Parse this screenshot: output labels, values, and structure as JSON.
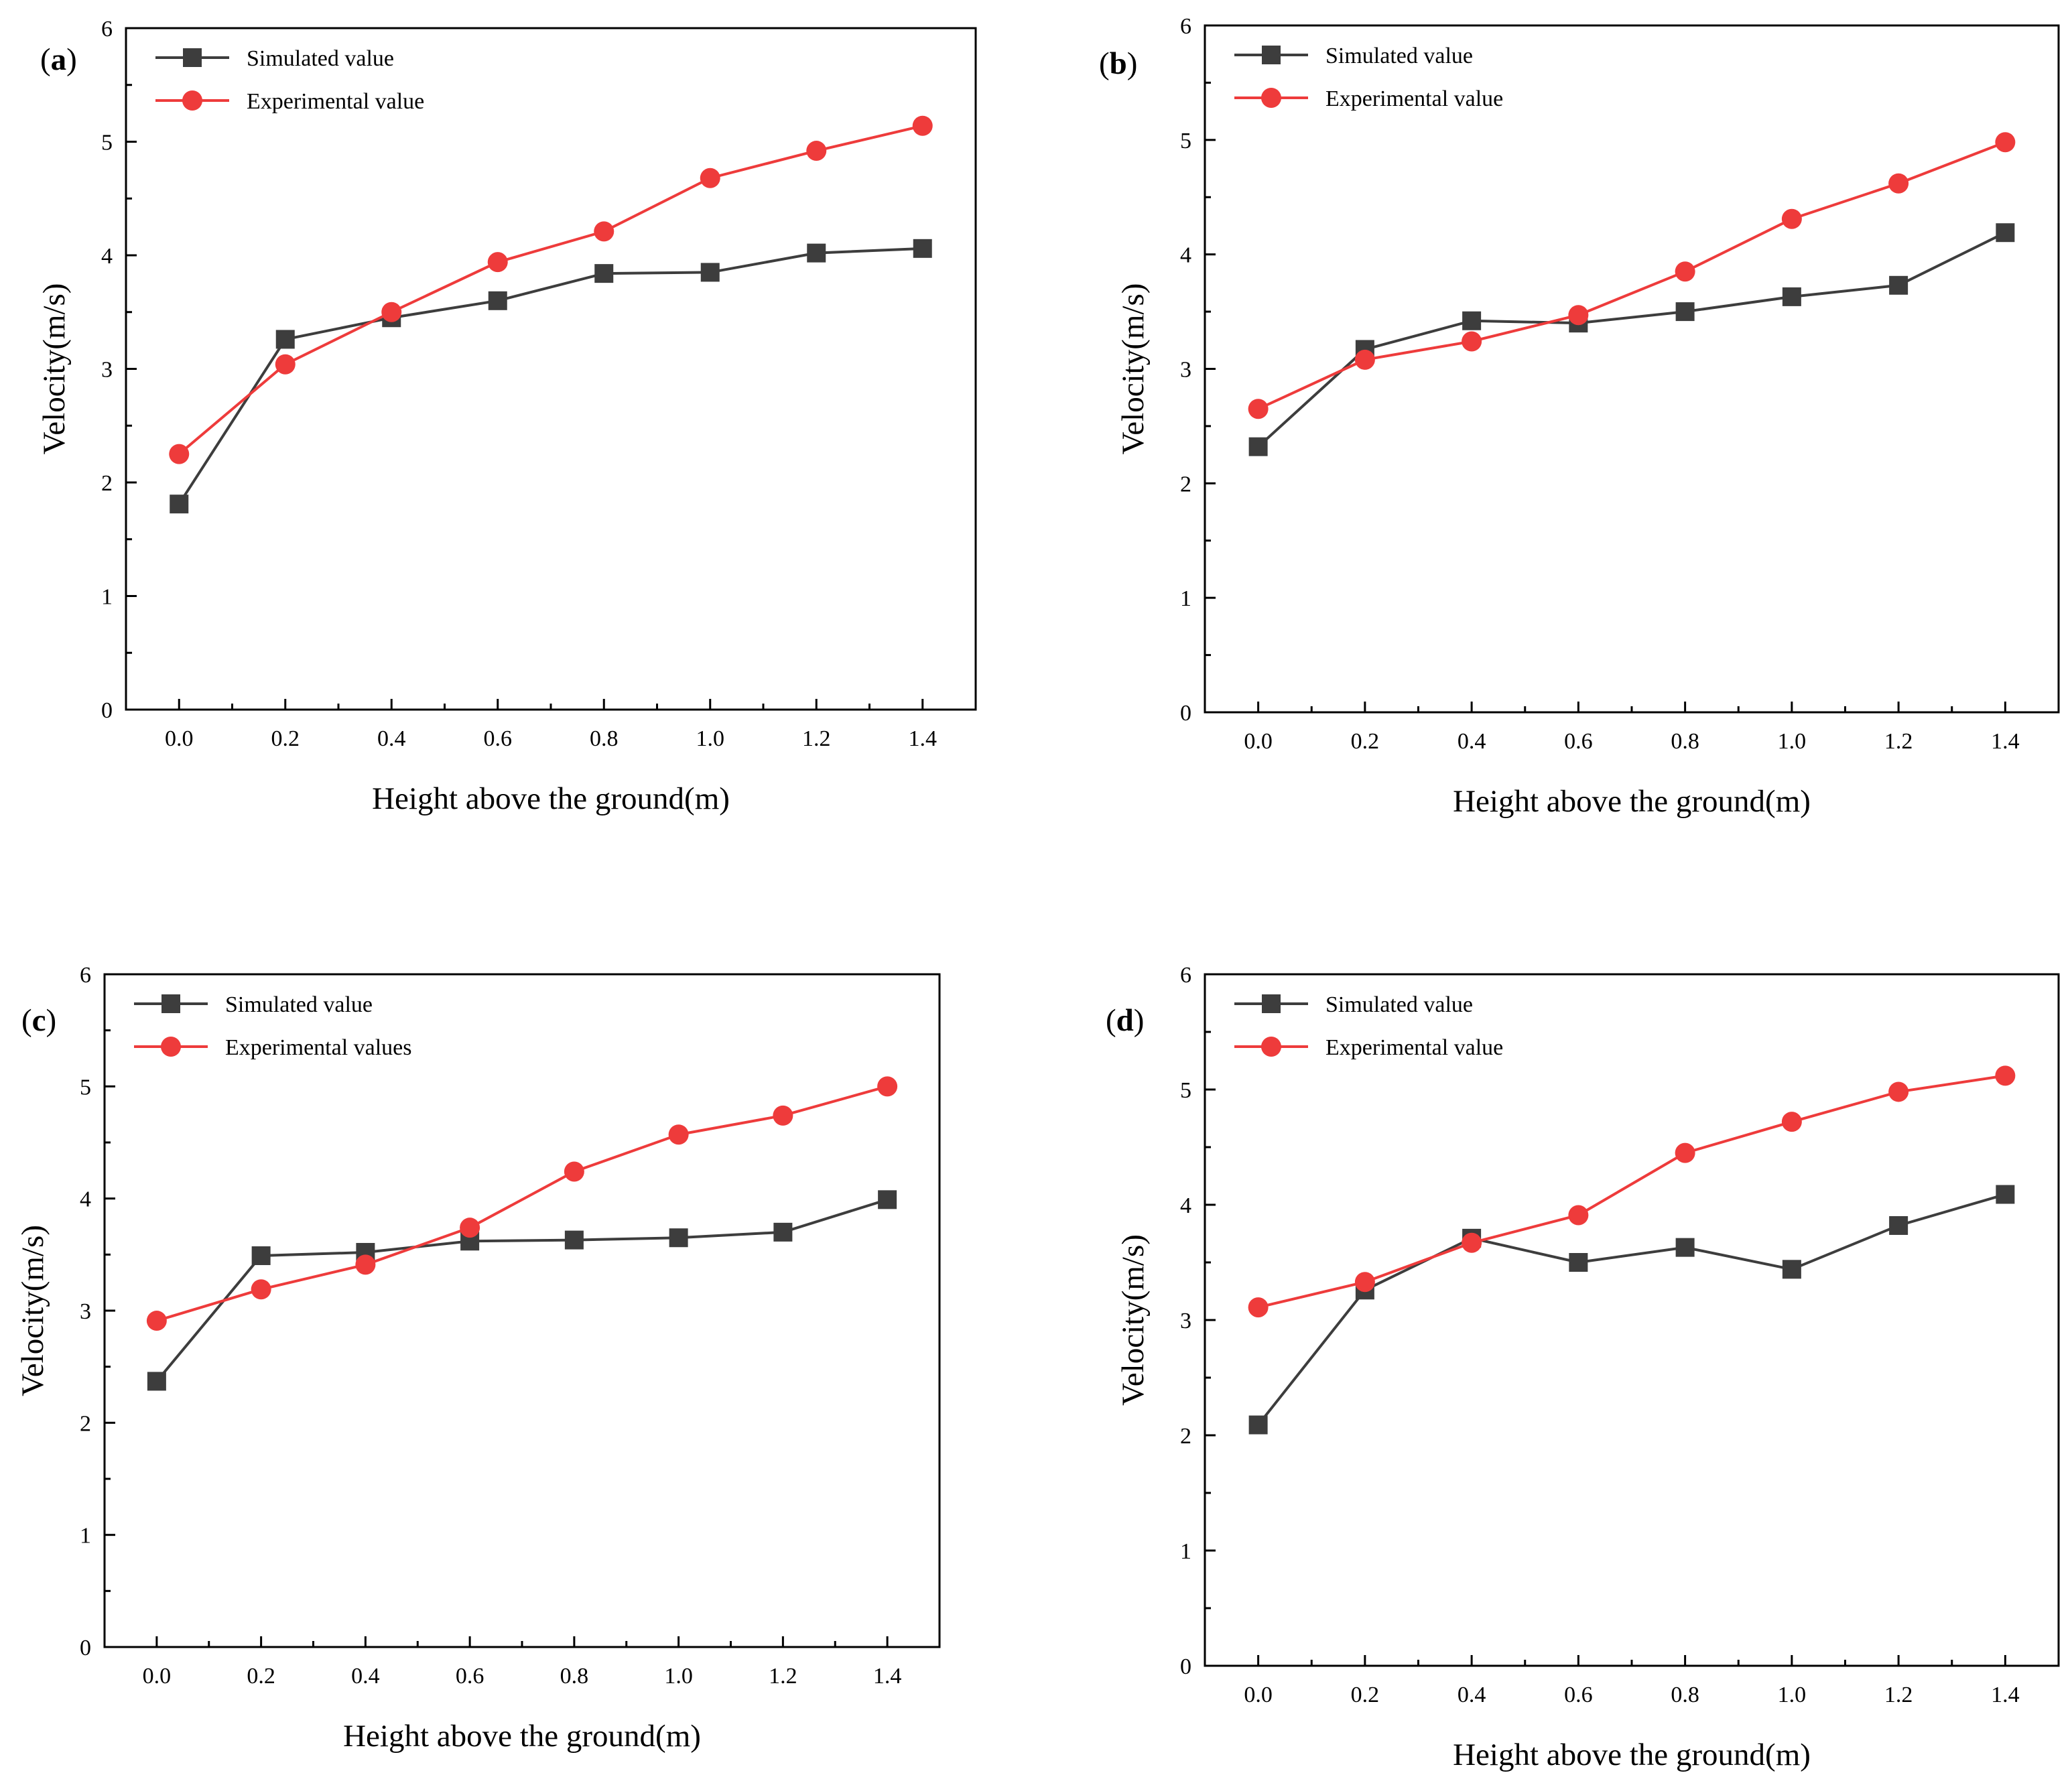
{
  "colors": {
    "simulated": "#3d3d3d",
    "experimental": "#ee3b3b"
  },
  "chart_data": [
    {
      "type": "line",
      "panel_label": "a",
      "xlabel": "Height above the ground(m)",
      "ylabel": "Velocity(m/s)",
      "x": [
        0.0,
        0.2,
        0.4,
        0.6,
        0.8,
        1.0,
        1.2,
        1.4
      ],
      "x_tick_labels": [
        "0.0",
        "0.2",
        "0.4",
        "0.6",
        "0.8",
        "1.0",
        "1.2",
        "1.4"
      ],
      "y_tick_labels": [
        "0",
        "1",
        "2",
        "3",
        "4",
        "5",
        "6"
      ],
      "xlim": [
        -0.1,
        1.5
      ],
      "ylim": [
        0,
        6
      ],
      "legend_position": "top-left",
      "series": [
        {
          "name": "Simulated value",
          "marker": "square",
          "values": [
            1.81,
            3.26,
            3.45,
            3.6,
            3.84,
            3.85,
            4.02,
            4.06
          ]
        },
        {
          "name": "Experimental value",
          "marker": "circle",
          "values": [
            2.25,
            3.04,
            3.5,
            3.94,
            4.21,
            4.68,
            4.92,
            5.14
          ]
        }
      ]
    },
    {
      "type": "line",
      "panel_label": "b",
      "xlabel": "Height above the ground(m)",
      "ylabel": "Velocity(m/s)",
      "x": [
        0.0,
        0.2,
        0.4,
        0.6,
        0.8,
        1.0,
        1.2,
        1.4
      ],
      "x_tick_labels": [
        "0.0",
        "0.2",
        "0.4",
        "0.6",
        "0.8",
        "1.0",
        "1.2",
        "1.4"
      ],
      "y_tick_labels": [
        "0",
        "1",
        "2",
        "3",
        "4",
        "5",
        "6"
      ],
      "xlim": [
        -0.1,
        1.5
      ],
      "ylim": [
        0,
        6
      ],
      "legend_position": "top-left",
      "series": [
        {
          "name": "Simulated value",
          "marker": "square",
          "values": [
            2.32,
            3.17,
            3.42,
            3.4,
            3.5,
            3.63,
            3.73,
            4.19
          ]
        },
        {
          "name": "Experimental value",
          "marker": "circle",
          "values": [
            2.65,
            3.08,
            3.24,
            3.47,
            3.85,
            4.31,
            4.62,
            4.98
          ]
        }
      ]
    },
    {
      "type": "line",
      "panel_label": "c",
      "xlabel": "Height above the ground(m)",
      "ylabel": "Velocity(m/s)",
      "x": [
        0.0,
        0.2,
        0.4,
        0.6,
        0.8,
        1.0,
        1.2,
        1.4
      ],
      "x_tick_labels": [
        "0.0",
        "0.2",
        "0.4",
        "0.6",
        "0.8",
        "1.0",
        "1.2",
        "1.4"
      ],
      "y_tick_labels": [
        "0",
        "1",
        "2",
        "3",
        "4",
        "5",
        "6"
      ],
      "xlim": [
        -0.1,
        1.5
      ],
      "ylim": [
        0,
        6
      ],
      "legend_position": "top-left",
      "series": [
        {
          "name": "Simulated value",
          "marker": "square",
          "values": [
            2.37,
            3.49,
            3.52,
            3.62,
            3.63,
            3.65,
            3.7,
            3.99
          ]
        },
        {
          "name": "Experimental values",
          "marker": "circle",
          "values": [
            2.91,
            3.19,
            3.41,
            3.74,
            4.24,
            4.57,
            4.74,
            5.0
          ]
        }
      ]
    },
    {
      "type": "line",
      "panel_label": "d",
      "xlabel": "Height above the ground(m)",
      "ylabel": "Velocity(m/s)",
      "x": [
        0.0,
        0.2,
        0.4,
        0.6,
        0.8,
        1.0,
        1.2,
        1.4
      ],
      "x_tick_labels": [
        "0.0",
        "0.2",
        "0.4",
        "0.6",
        "0.8",
        "1.0",
        "1.2",
        "1.4"
      ],
      "y_tick_labels": [
        "0",
        "1",
        "2",
        "3",
        "4",
        "5",
        "6"
      ],
      "xlim": [
        -0.1,
        1.5
      ],
      "ylim": [
        0,
        6
      ],
      "legend_position": "top-left",
      "series": [
        {
          "name": "Simulated value",
          "marker": "square",
          "values": [
            2.09,
            3.26,
            3.71,
            3.5,
            3.63,
            3.44,
            3.82,
            4.09
          ]
        },
        {
          "name": "Experimental value",
          "marker": "circle",
          "values": [
            3.11,
            3.33,
            3.67,
            3.91,
            4.45,
            4.72,
            4.98,
            5.12
          ]
        }
      ]
    }
  ]
}
